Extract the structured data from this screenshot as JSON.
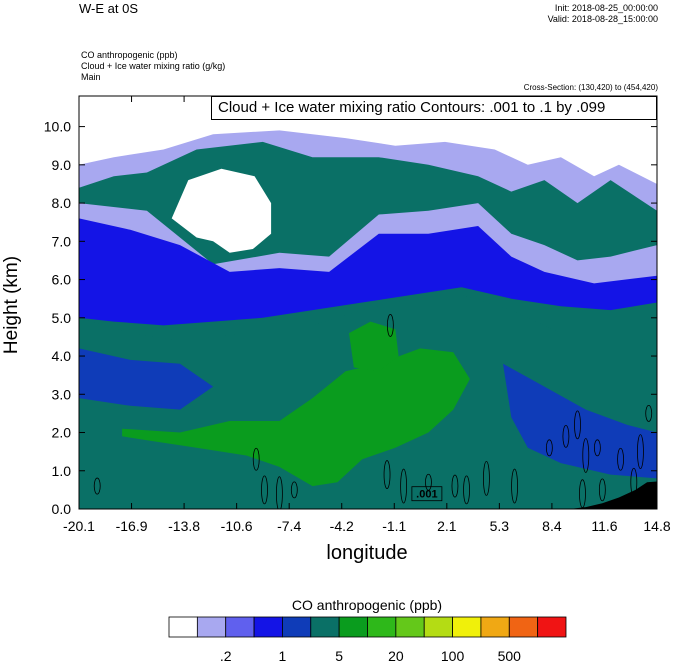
{
  "header": {
    "title": "W-E at 0S",
    "init": "Init: 2018-08-25_00:00:00",
    "valid": "Valid: 2018-08-28_15:00:00",
    "field1": "CO anthropogenic   (ppb)",
    "field2": "Cloud + Ice water mixing ratio   (g/kg)",
    "field3": "Main",
    "cross_section": "Cross-Section: (130,420) to (454,420)",
    "contour_info": "Cloud + Ice water mixing ratio Contours: .001 to .1 by .099",
    "contour_label": ".001"
  },
  "colors": {
    "levels": [
      "#ffffff",
      "#a8a8f0",
      "#6060ee",
      "#1414e6",
      "#0f3cb8",
      "#0a7066",
      "#0a9c1e",
      "#2eb81a",
      "#64c81a",
      "#b4dc14",
      "#f0f00a",
      "#f0a814",
      "#f06414",
      "#f01414"
    ],
    "terrain": "#000000"
  },
  "chart_data": {
    "type": "heatmap",
    "title": "W-E at 0S",
    "xlabel": "longitude",
    "ylabel": "Height (km)",
    "xlim": [
      -20.1,
      14.8
    ],
    "ylim": [
      0.0,
      10.8
    ],
    "x_ticks": [
      "-20.1",
      "-16.9",
      "-13.8",
      "-10.6",
      "-7.4",
      "-4.2",
      "-1.1",
      "2.1",
      "5.3",
      "8.4",
      "11.6",
      "14.8"
    ],
    "y_ticks": [
      "0.0",
      "1.0",
      "2.0",
      "3.0",
      "4.0",
      "5.0",
      "6.0",
      "7.0",
      "8.0",
      "9.0",
      "10.0"
    ],
    "colorbar_title": "CO anthropogenic  (ppb)",
    "colorbar_labels": [
      ".2",
      "1",
      "5",
      "20",
      "100",
      "500"
    ],
    "contour_range": {
      "min": 0.001,
      "max": 0.1,
      "interval": 0.099
    },
    "regions": [
      {
        "level": 1,
        "name": "upper light band",
        "polygon": [
          [
            -20.1,
            10.8
          ],
          [
            14.8,
            10.8
          ],
          [
            14.8,
            7.8
          ],
          [
            12,
            8.6
          ],
          [
            10,
            8.0
          ],
          [
            8,
            8.6
          ],
          [
            6,
            8.3
          ],
          [
            4,
            8.7
          ],
          [
            1,
            9.0
          ],
          [
            -2,
            9.2
          ],
          [
            -6,
            9.2
          ],
          [
            -9,
            9.6
          ],
          [
            -13,
            9.4
          ],
          [
            -16,
            8.8
          ],
          [
            -18,
            8.7
          ],
          [
            -20.1,
            8.4
          ]
        ]
      },
      {
        "level": 0,
        "name": "upper white region",
        "polygon": [
          [
            -20.1,
            10.8
          ],
          [
            14.8,
            10.8
          ],
          [
            14.8,
            8.5
          ],
          [
            12.5,
            9.0
          ],
          [
            11,
            8.7
          ],
          [
            9,
            9.2
          ],
          [
            7,
            9.0
          ],
          [
            5,
            9.4
          ],
          [
            2,
            9.6
          ],
          [
            -1,
            9.5
          ],
          [
            -4,
            9.7
          ],
          [
            -8,
            9.9
          ],
          [
            -12,
            9.8
          ],
          [
            -15,
            9.4
          ],
          [
            -18,
            9.2
          ],
          [
            -20.1,
            9.0
          ]
        ]
      },
      {
        "level": 0,
        "name": "mid-level white cloud",
        "polygon": [
          [
            -14.5,
            7.6
          ],
          [
            -13.5,
            8.6
          ],
          [
            -11.5,
            8.9
          ],
          [
            -9.5,
            8.7
          ],
          [
            -8.5,
            8.0
          ],
          [
            -8.5,
            7.2
          ],
          [
            -9.6,
            6.8
          ],
          [
            -11.0,
            6.7
          ],
          [
            -12.0,
            7.0
          ],
          [
            -13.0,
            7.1
          ]
        ]
      },
      {
        "level": 1,
        "name": "mid light band",
        "polygon": [
          [
            -20.1,
            8.0
          ],
          [
            -16,
            7.8
          ],
          [
            -12,
            6.4
          ],
          [
            -8,
            6.7
          ],
          [
            -5,
            6.6
          ],
          [
            -2,
            7.7
          ],
          [
            1,
            7.8
          ],
          [
            4,
            8.0
          ],
          [
            6,
            7.2
          ],
          [
            8,
            6.9
          ],
          [
            10,
            6.5
          ],
          [
            12,
            6.6
          ],
          [
            14.8,
            6.9
          ],
          [
            14.8,
            5.7
          ],
          [
            12,
            5.8
          ],
          [
            9,
            6.0
          ],
          [
            6,
            6.3
          ],
          [
            3,
            6.3
          ],
          [
            0,
            6.0
          ],
          [
            -4,
            5.9
          ],
          [
            -8,
            5.7
          ],
          [
            -12,
            5.5
          ],
          [
            -15,
            5.3
          ],
          [
            -18,
            5.5
          ],
          [
            -20.1,
            5.6
          ]
        ]
      },
      {
        "level": 3,
        "name": "dark blue band",
        "polygon": [
          [
            -20.1,
            7.6
          ],
          [
            -17,
            7.3
          ],
          [
            -14,
            6.9
          ],
          [
            -11,
            6.2
          ],
          [
            -8,
            6.3
          ],
          [
            -5,
            6.2
          ],
          [
            -2,
            7.2
          ],
          [
            1,
            7.2
          ],
          [
            4,
            7.4
          ],
          [
            6,
            6.6
          ],
          [
            8,
            6.2
          ],
          [
            11,
            5.9
          ],
          [
            14.8,
            6.1
          ],
          [
            14.8,
            5.4
          ],
          [
            12,
            5.2
          ],
          [
            9,
            5.3
          ],
          [
            6,
            5.5
          ],
          [
            3,
            5.8
          ],
          [
            0,
            5.6
          ],
          [
            -3,
            5.4
          ],
          [
            -6,
            5.2
          ],
          [
            -9,
            5.0
          ],
          [
            -12,
            4.9
          ],
          [
            -15,
            4.8
          ],
          [
            -18,
            4.9
          ],
          [
            -20.1,
            5.0
          ]
        ]
      },
      {
        "level": 5,
        "name": "teal core",
        "polygon": [
          [
            -20.1,
            5.0
          ],
          [
            -17,
            4.6
          ],
          [
            -14,
            4.4
          ],
          [
            -10,
            4.6
          ],
          [
            -6,
            4.8
          ],
          [
            -3,
            5.2
          ],
          [
            0,
            5.5
          ],
          [
            3,
            5.6
          ],
          [
            6,
            5.2
          ],
          [
            9,
            4.6
          ],
          [
            12,
            4.5
          ],
          [
            14.8,
            4.4
          ],
          [
            14.8,
            0.0
          ],
          [
            -20.1,
            0.0
          ]
        ]
      },
      {
        "level": 4,
        "name": "lower blue left",
        "polygon": [
          [
            -20.1,
            4.2
          ],
          [
            -17,
            3.9
          ],
          [
            -14,
            3.8
          ],
          [
            -12,
            3.2
          ],
          [
            -14,
            2.6
          ],
          [
            -17,
            2.7
          ],
          [
            -20.1,
            2.9
          ]
        ]
      },
      {
        "level": 4,
        "name": "lower blue right",
        "polygon": [
          [
            5.5,
            3.8
          ],
          [
            8,
            3.2
          ],
          [
            10.5,
            2.6
          ],
          [
            13,
            2.2
          ],
          [
            14.8,
            2.0
          ],
          [
            14.8,
            0.8
          ],
          [
            12,
            0.9
          ],
          [
            9,
            1.2
          ],
          [
            7,
            1.6
          ],
          [
            6,
            2.4
          ]
        ]
      },
      {
        "level": 6,
        "name": "green plume",
        "polygon": [
          [
            -17.5,
            2.1
          ],
          [
            -14,
            2.0
          ],
          [
            -11,
            2.3
          ],
          [
            -8,
            2.3
          ],
          [
            -6,
            2.9
          ],
          [
            -4,
            3.6
          ],
          [
            -2,
            3.8
          ],
          [
            0.5,
            4.2
          ],
          [
            2.5,
            4.1
          ],
          [
            3.5,
            3.4
          ],
          [
            2.5,
            2.6
          ],
          [
            1,
            2.0
          ],
          [
            -1,
            1.6
          ],
          [
            -3,
            1.3
          ],
          [
            -4.5,
            0.7
          ],
          [
            -6,
            0.6
          ],
          [
            -8,
            1.1
          ],
          [
            -10,
            1.4
          ],
          [
            -13,
            1.6
          ],
          [
            -16,
            1.8
          ],
          [
            -17.5,
            1.9
          ]
        ]
      },
      {
        "level": 6,
        "name": "green bump",
        "polygon": [
          [
            -3.8,
            4.6
          ],
          [
            -2.5,
            4.9
          ],
          [
            -1.0,
            4.7
          ],
          [
            -0.8,
            4.0
          ],
          [
            -2.0,
            3.6
          ],
          [
            -3.5,
            3.7
          ]
        ]
      }
    ],
    "terrain": [
      [
        9.5,
        0.0
      ],
      [
        10.5,
        0.05
      ],
      [
        11.5,
        0.15
      ],
      [
        12.5,
        0.3
      ],
      [
        13.5,
        0.5
      ],
      [
        14.2,
        0.7
      ],
      [
        14.8,
        0.72
      ],
      [
        14.8,
        0.0
      ]
    ]
  }
}
